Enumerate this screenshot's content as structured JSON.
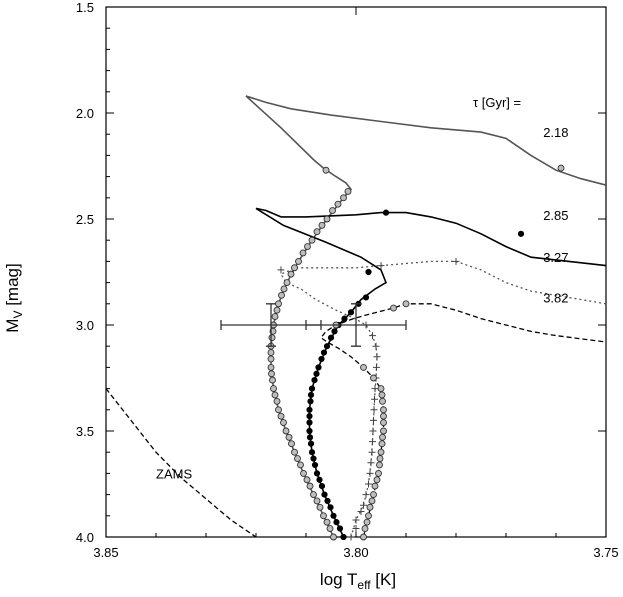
{
  "chart_data": {
    "type": "line",
    "title": "",
    "xlabel": "log T",
    "xlabel_sub": "eff",
    "xlabel_unit": " [K]",
    "ylabel": "M",
    "ylabel_sub": "V",
    "ylabel_unit": " [mag]",
    "xlim": [
      3.85,
      3.75
    ],
    "ylim": [
      4.0,
      1.5
    ],
    "x_reversed": true,
    "y_reversed": true,
    "grid": false,
    "xticks": [
      3.85,
      3.8,
      3.75
    ],
    "xtick_labels": [
      "3.85",
      "3.80",
      "3.75"
    ],
    "yticks": [
      1.5,
      2.0,
      2.5,
      3.0,
      3.5,
      4.0
    ],
    "ytick_labels": [
      "1.5",
      "2.0",
      "2.5",
      "3.0",
      "3.5",
      "4.0"
    ],
    "legend_header": "τ [Gyr] =",
    "annotations": [
      {
        "text": "2.18",
        "x": 3.7575,
        "y": 2.09
      },
      {
        "text": "2.85",
        "x": 3.7575,
        "y": 2.48
      },
      {
        "text": "3.27",
        "x": 3.7575,
        "y": 2.68
      },
      {
        "text": "3.82",
        "x": 3.7575,
        "y": 2.87
      },
      {
        "text": "ZAMS",
        "x": 3.84,
        "y": 3.7
      }
    ],
    "series": [
      {
        "label": "2.18",
        "style": "solid",
        "color": "#555555",
        "marker": "open-circle",
        "points": [
          [
            3.8045,
            4.0
          ],
          [
            3.8065,
            3.9
          ],
          [
            3.8085,
            3.8
          ],
          [
            3.8105,
            3.7
          ],
          [
            3.8123,
            3.6
          ],
          [
            3.814,
            3.5
          ],
          [
            3.8155,
            3.4
          ],
          [
            3.8165,
            3.3
          ],
          [
            3.817,
            3.2
          ],
          [
            3.817,
            3.1
          ],
          [
            3.8165,
            3.0
          ],
          [
            3.8155,
            2.9
          ],
          [
            3.8138,
            2.8
          ],
          [
            3.8115,
            2.7
          ],
          [
            3.8088,
            2.6
          ],
          [
            3.8058,
            2.5
          ],
          [
            3.8025,
            2.4
          ],
          [
            3.801,
            2.36
          ],
          [
            3.802,
            2.33
          ],
          [
            3.804,
            2.3
          ],
          [
            3.8065,
            2.26
          ],
          [
            3.8085,
            2.22
          ],
          [
            3.815,
            2.07
          ],
          [
            3.822,
            1.92
          ],
          [
            3.818,
            1.95
          ],
          [
            3.813,
            1.98
          ],
          [
            3.805,
            2.01
          ],
          [
            3.795,
            2.04
          ],
          [
            3.785,
            2.07
          ],
          [
            3.775,
            2.09
          ],
          [
            3.77,
            2.12
          ],
          [
            3.765,
            2.2
          ],
          [
            3.76,
            2.27
          ],
          [
            3.755,
            2.31
          ],
          [
            3.75,
            2.34
          ]
        ],
        "markers": [
          [
            3.8045,
            4.0
          ],
          [
            3.8052,
            3.96
          ],
          [
            3.8058,
            3.93
          ],
          [
            3.8065,
            3.9
          ],
          [
            3.8072,
            3.86
          ],
          [
            3.8078,
            3.83
          ],
          [
            3.8085,
            3.8
          ],
          [
            3.8092,
            3.76
          ],
          [
            3.8098,
            3.73
          ],
          [
            3.8105,
            3.7
          ],
          [
            3.8111,
            3.66
          ],
          [
            3.8117,
            3.63
          ],
          [
            3.8123,
            3.6
          ],
          [
            3.8129,
            3.56
          ],
          [
            3.8134,
            3.53
          ],
          [
            3.814,
            3.5
          ],
          [
            3.8145,
            3.46
          ],
          [
            3.815,
            3.43
          ],
          [
            3.8155,
            3.4
          ],
          [
            3.8158,
            3.36
          ],
          [
            3.8162,
            3.33
          ],
          [
            3.8165,
            3.3
          ],
          [
            3.8167,
            3.26
          ],
          [
            3.8169,
            3.23
          ],
          [
            3.817,
            3.2
          ],
          [
            3.817,
            3.16
          ],
          [
            3.817,
            3.13
          ],
          [
            3.817,
            3.1
          ],
          [
            3.8168,
            3.06
          ],
          [
            3.8166,
            3.03
          ],
          [
            3.8165,
            3.0
          ],
          [
            3.8162,
            2.96
          ],
          [
            3.8158,
            2.93
          ],
          [
            3.8155,
            2.9
          ],
          [
            3.8149,
            2.86
          ],
          [
            3.8144,
            2.83
          ],
          [
            3.8138,
            2.8
          ],
          [
            3.813,
            2.76
          ],
          [
            3.8123,
            2.73
          ],
          [
            3.8115,
            2.7
          ],
          [
            3.8106,
            2.66
          ],
          [
            3.8097,
            2.63
          ],
          [
            3.8088,
            2.6
          ],
          [
            3.8078,
            2.56
          ],
          [
            3.8068,
            2.53
          ],
          [
            3.8058,
            2.5
          ],
          [
            3.8047,
            2.46
          ],
          [
            3.8036,
            2.43
          ],
          [
            3.8025,
            2.4
          ],
          [
            3.8016,
            2.37
          ],
          [
            3.806,
            2.27
          ],
          [
            3.759,
            2.26
          ]
        ]
      },
      {
        "label": "2.85",
        "style": "solid",
        "color": "#000000",
        "marker": "filled-circle",
        "points": [
          [
            3.8025,
            4.0
          ],
          [
            3.8045,
            3.9
          ],
          [
            3.8063,
            3.8
          ],
          [
            3.8078,
            3.7
          ],
          [
            3.8088,
            3.6
          ],
          [
            3.8093,
            3.5
          ],
          [
            3.8093,
            3.4
          ],
          [
            3.8088,
            3.3
          ],
          [
            3.8075,
            3.2
          ],
          [
            3.8058,
            3.1
          ],
          [
            3.8035,
            3.0
          ],
          [
            3.801,
            2.94
          ],
          [
            3.799,
            2.88
          ],
          [
            3.7962,
            2.83
          ],
          [
            3.794,
            2.8
          ],
          [
            3.795,
            2.74
          ],
          [
            3.799,
            2.68
          ],
          [
            3.806,
            2.61
          ],
          [
            3.8145,
            2.53
          ],
          [
            3.82,
            2.45
          ],
          [
            3.818,
            2.46
          ],
          [
            3.815,
            2.49
          ],
          [
            3.81,
            2.49
          ],
          [
            3.8,
            2.48
          ],
          [
            3.795,
            2.47
          ],
          [
            3.79,
            2.47
          ],
          [
            3.785,
            2.49
          ],
          [
            3.78,
            2.52
          ],
          [
            3.775,
            2.57
          ],
          [
            3.77,
            2.63
          ],
          [
            3.765,
            2.68
          ],
          [
            3.75,
            2.72
          ]
        ],
        "markers": [
          [
            3.8025,
            4.0
          ],
          [
            3.8032,
            3.96
          ],
          [
            3.8039,
            3.93
          ],
          [
            3.8045,
            3.9
          ],
          [
            3.8051,
            3.86
          ],
          [
            3.8057,
            3.83
          ],
          [
            3.8063,
            3.8
          ],
          [
            3.8068,
            3.76
          ],
          [
            3.8073,
            3.73
          ],
          [
            3.8078,
            3.7
          ],
          [
            3.8082,
            3.66
          ],
          [
            3.8085,
            3.63
          ],
          [
            3.8088,
            3.6
          ],
          [
            3.809,
            3.56
          ],
          [
            3.8092,
            3.53
          ],
          [
            3.8093,
            3.5
          ],
          [
            3.8093,
            3.46
          ],
          [
            3.8093,
            3.43
          ],
          [
            3.8093,
            3.4
          ],
          [
            3.8091,
            3.36
          ],
          [
            3.809,
            3.33
          ],
          [
            3.8088,
            3.3
          ],
          [
            3.8083,
            3.26
          ],
          [
            3.8079,
            3.23
          ],
          [
            3.8075,
            3.2
          ],
          [
            3.8069,
            3.16
          ],
          [
            3.8064,
            3.13
          ],
          [
            3.8058,
            3.1
          ],
          [
            3.805,
            3.06
          ],
          [
            3.8043,
            3.03
          ],
          [
            3.8035,
            3.0
          ],
          [
            3.8023,
            2.97
          ],
          [
            3.801,
            2.94
          ],
          [
            3.7995,
            2.9
          ],
          [
            3.798,
            2.87
          ],
          [
            3.7975,
            2.75
          ],
          [
            3.794,
            2.47
          ],
          [
            3.767,
            2.57
          ]
        ]
      },
      {
        "label": "3.27",
        "style": "dotted",
        "color": "#555555",
        "marker": "plus",
        "points": [
          [
            3.801,
            4.0
          ],
          [
            3.8,
            3.92
          ],
          [
            3.7985,
            3.85
          ],
          [
            3.7975,
            3.75
          ],
          [
            3.797,
            3.65
          ],
          [
            3.7967,
            3.55
          ],
          [
            3.7965,
            3.45
          ],
          [
            3.7963,
            3.35
          ],
          [
            3.796,
            3.25
          ],
          [
            3.7958,
            3.15
          ],
          [
            3.796,
            3.1
          ],
          [
            3.7967,
            3.05
          ],
          [
            3.798,
            3.0
          ],
          [
            3.8002,
            2.97
          ],
          [
            3.804,
            2.93
          ],
          [
            3.808,
            2.88
          ],
          [
            3.811,
            2.83
          ],
          [
            3.814,
            2.8
          ],
          [
            3.815,
            2.76
          ],
          [
            3.812,
            2.73
          ],
          [
            3.81,
            2.73
          ],
          [
            3.805,
            2.73
          ],
          [
            3.8,
            2.73
          ],
          [
            3.795,
            2.72
          ],
          [
            3.79,
            2.71
          ],
          [
            3.785,
            2.7
          ],
          [
            3.78,
            2.7
          ],
          [
            3.775,
            2.74
          ],
          [
            3.77,
            2.8
          ],
          [
            3.765,
            2.84
          ],
          [
            3.76,
            2.86
          ],
          [
            3.75,
            2.9
          ]
        ],
        "markers": [
          [
            3.801,
            4.0
          ],
          [
            3.8,
            3.96
          ],
          [
            3.8,
            3.92
          ],
          [
            3.799,
            3.88
          ],
          [
            3.7985,
            3.85
          ],
          [
            3.798,
            3.8
          ],
          [
            3.7975,
            3.75
          ],
          [
            3.7972,
            3.7
          ],
          [
            3.797,
            3.65
          ],
          [
            3.7968,
            3.6
          ],
          [
            3.7967,
            3.55
          ],
          [
            3.7966,
            3.5
          ],
          [
            3.7965,
            3.45
          ],
          [
            3.7964,
            3.4
          ],
          [
            3.7963,
            3.35
          ],
          [
            3.7962,
            3.3
          ],
          [
            3.796,
            3.25
          ],
          [
            3.7959,
            3.2
          ],
          [
            3.7958,
            3.15
          ],
          [
            3.796,
            3.1
          ],
          [
            3.7967,
            3.05
          ],
          [
            3.798,
            3.0
          ],
          [
            3.815,
            2.74
          ],
          [
            3.795,
            2.72
          ],
          [
            3.78,
            2.7
          ]
        ]
      },
      {
        "label": "3.82",
        "style": "dashed",
        "color": "#000000",
        "marker": "open-circle",
        "points": [
          [
            3.7985,
            4.0
          ],
          [
            3.7975,
            3.9
          ],
          [
            3.7965,
            3.8
          ],
          [
            3.7955,
            3.7
          ],
          [
            3.795,
            3.6
          ],
          [
            3.7945,
            3.5
          ],
          [
            3.7945,
            3.4
          ],
          [
            3.795,
            3.3
          ],
          [
            3.7965,
            3.25
          ],
          [
            3.7985,
            3.2
          ],
          [
            3.801,
            3.15
          ],
          [
            3.8035,
            3.11
          ],
          [
            3.8058,
            3.08
          ],
          [
            3.807,
            3.06
          ],
          [
            3.806,
            3.03
          ],
          [
            3.804,
            3.0
          ],
          [
            3.8005,
            2.97
          ],
          [
            3.7975,
            2.95
          ],
          [
            3.7925,
            2.92
          ],
          [
            3.79,
            2.9
          ],
          [
            3.785,
            2.9
          ],
          [
            3.78,
            2.93
          ],
          [
            3.775,
            2.97
          ],
          [
            3.77,
            3.0
          ],
          [
            3.765,
            3.03
          ],
          [
            3.76,
            3.05
          ],
          [
            3.75,
            3.08
          ]
        ],
        "markers": [
          [
            3.7985,
            4.0
          ],
          [
            3.7982,
            3.96
          ],
          [
            3.7978,
            3.93
          ],
          [
            3.7975,
            3.9
          ],
          [
            3.7972,
            3.86
          ],
          [
            3.7968,
            3.83
          ],
          [
            3.7965,
            3.8
          ],
          [
            3.7962,
            3.76
          ],
          [
            3.7958,
            3.73
          ],
          [
            3.7955,
            3.7
          ],
          [
            3.7953,
            3.66
          ],
          [
            3.7952,
            3.63
          ],
          [
            3.795,
            3.6
          ],
          [
            3.7948,
            3.56
          ],
          [
            3.7947,
            3.53
          ],
          [
            3.7945,
            3.5
          ],
          [
            3.7945,
            3.46
          ],
          [
            3.7945,
            3.43
          ],
          [
            3.7945,
            3.4
          ],
          [
            3.7947,
            3.36
          ],
          [
            3.7948,
            3.33
          ],
          [
            3.795,
            3.3
          ],
          [
            3.7965,
            3.25
          ],
          [
            3.7985,
            3.2
          ],
          [
            3.804,
            3.0
          ],
          [
            3.7925,
            2.92
          ],
          [
            3.79,
            2.9
          ]
        ]
      },
      {
        "label": "ZAMS",
        "style": "dashed",
        "color": "#000000",
        "marker": "none",
        "points": [
          [
            3.85,
            3.3
          ],
          [
            3.845,
            3.45
          ],
          [
            3.84,
            3.6
          ],
          [
            3.835,
            3.72
          ],
          [
            3.83,
            3.82
          ],
          [
            3.825,
            3.92
          ],
          [
            3.82,
            4.0
          ]
        ],
        "markers": []
      }
    ],
    "error_bars": [
      {
        "x": 3.817,
        "y": 3.0,
        "xerr": 0.01,
        "yerr": 0.1
      },
      {
        "x": 3.8,
        "y": 3.0,
        "xerr": 0.01,
        "yerr": 0.1
      }
    ]
  }
}
